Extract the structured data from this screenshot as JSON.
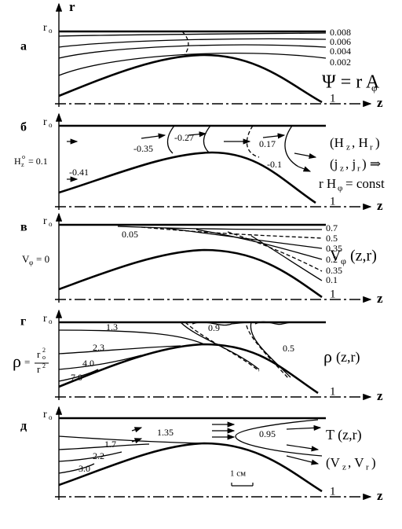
{
  "axis_r": "r",
  "panels": [
    {
      "letter": "а",
      "r0": "r",
      "r0_sub": "o",
      "z": "z",
      "end": "1",
      "labels": [
        "0.008",
        "0.006",
        "0.004",
        "0.002",
        "Ψ = r A",
        "φ"
      ]
    },
    {
      "letter": "б",
      "r0": "r",
      "r0_sub": "o",
      "z": "z",
      "end": "1",
      "labels": [
        "-0.27",
        "0.17",
        "-0.35",
        "-0.1",
        "-0.41",
        "H",
        "z",
        "o",
        "= 0.1",
        "(H",
        "z",
        ", H",
        "r",
        ")",
        "(j",
        "z",
        ", j",
        "r",
        ") ⇒",
        "r H",
        "φ",
        "= const"
      ]
    },
    {
      "letter": "в",
      "r0": "r",
      "r0_sub": "o",
      "z": "z",
      "end": "1",
      "labels": [
        "0.7",
        "0.5",
        "0.35",
        "0.2",
        "0.35",
        "0.1",
        "0.05",
        "V",
        "φ",
        "(z,r)",
        "V",
        "φ",
        "= 0"
      ]
    },
    {
      "letter": "г",
      "r0": "r",
      "r0_sub": "o",
      "z": "z",
      "end": "1",
      "labels": [
        "1.3",
        "0.9",
        "2.3",
        "0.5",
        "4.0",
        "7.0",
        "ρ",
        "(z,r)",
        "ρ",
        "=",
        "r",
        "o",
        "2",
        "r",
        "2"
      ]
    },
    {
      "letter": "д",
      "r0": "r",
      "r0_sub": "o",
      "z": "z",
      "end": "1",
      "labels": [
        "1.35",
        "0.95",
        "1.7",
        "2.2",
        "3.0",
        "T (z,r)",
        "(V",
        "z",
        ", V",
        "r",
        ")",
        "1 см"
      ]
    }
  ]
}
